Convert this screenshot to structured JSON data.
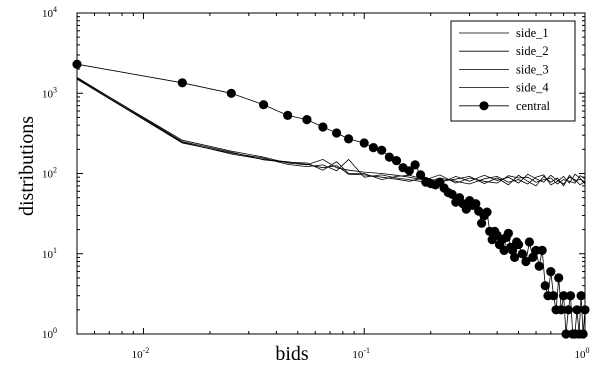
{
  "chart_data": {
    "type": "line",
    "title": "",
    "xlabel": "bids",
    "ylabel": "distributions",
    "xscale": "log",
    "yscale": "log",
    "xlim": [
      0.005,
      1
    ],
    "ylim": [
      1,
      10000
    ],
    "x_ticks": [
      {
        "value": 0.01,
        "base": "10",
        "exp": "-2"
      },
      {
        "value": 0.1,
        "base": "10",
        "exp": "-1"
      },
      {
        "value": 1,
        "base": "10",
        "exp": "0"
      }
    ],
    "y_ticks": [
      {
        "value": 1,
        "base": "10",
        "exp": "0"
      },
      {
        "value": 10,
        "base": "10",
        "exp": "1"
      },
      {
        "value": 100,
        "base": "10",
        "exp": "2"
      },
      {
        "value": 1000,
        "base": "10",
        "exp": "3"
      },
      {
        "value": 10000,
        "base": "10",
        "exp": "4"
      }
    ],
    "grid": false,
    "legend_position": "top-right",
    "series": [
      {
        "name": "side_1",
        "marker": "none",
        "x": [
          0.005,
          0.015,
          0.025,
          0.035,
          0.045,
          0.055,
          0.065,
          0.075,
          0.085,
          0.1,
          0.12,
          0.14,
          0.16,
          0.19,
          0.22,
          0.26,
          0.3,
          0.35,
          0.4,
          0.45,
          0.5,
          0.55,
          0.6,
          0.65,
          0.7,
          0.75,
          0.8,
          0.85,
          0.9,
          0.95,
          1.0
        ],
        "y": [
          1550,
          260,
          190,
          160,
          135,
          128,
          150,
          118,
          110,
          104,
          100,
          95,
          90,
          82,
          80,
          85,
          92,
          75,
          88,
          72,
          95,
          80,
          70,
          92,
          78,
          88,
          70,
          95,
          80,
          85,
          78
        ]
      },
      {
        "name": "side_2",
        "marker": "none",
        "x": [
          0.005,
          0.015,
          0.025,
          0.035,
          0.045,
          0.055,
          0.065,
          0.075,
          0.085,
          0.1,
          0.12,
          0.14,
          0.16,
          0.19,
          0.22,
          0.26,
          0.3,
          0.35,
          0.4,
          0.45,
          0.5,
          0.55,
          0.6,
          0.65,
          0.7,
          0.75,
          0.8,
          0.85,
          0.9,
          0.95,
          1.0
        ],
        "y": [
          1520,
          245,
          175,
          150,
          140,
          130,
          118,
          125,
          98,
          96,
          90,
          85,
          80,
          90,
          76,
          92,
          80,
          95,
          82,
          90,
          76,
          98,
          86,
          78,
          95,
          82,
          74,
          90,
          84,
          72,
          80
        ]
      },
      {
        "name": "side_3",
        "marker": "none",
        "x": [
          0.005,
          0.015,
          0.025,
          0.035,
          0.045,
          0.055,
          0.065,
          0.075,
          0.085,
          0.1,
          0.12,
          0.14,
          0.16,
          0.19,
          0.22,
          0.26,
          0.3,
          0.35,
          0.4,
          0.45,
          0.5,
          0.55,
          0.6,
          0.65,
          0.7,
          0.75,
          0.8,
          0.85,
          0.9,
          0.95,
          1.0
        ],
        "y": [
          1500,
          240,
          180,
          155,
          130,
          122,
          128,
          108,
          150,
          90,
          96,
          88,
          84,
          78,
          88,
          80,
          74,
          86,
          92,
          78,
          84,
          74,
          90,
          96,
          72,
          80,
          92,
          76,
          98,
          88,
          74
        ]
      },
      {
        "name": "side_4",
        "marker": "none",
        "x": [
          0.005,
          0.015,
          0.025,
          0.035,
          0.045,
          0.055,
          0.065,
          0.075,
          0.085,
          0.1,
          0.12,
          0.14,
          0.16,
          0.19,
          0.22,
          0.26,
          0.3,
          0.35,
          0.4,
          0.45,
          0.5,
          0.55,
          0.6,
          0.65,
          0.7,
          0.75,
          0.8,
          0.85,
          0.9,
          0.95,
          1.0
        ],
        "y": [
          1580,
          250,
          185,
          148,
          138,
          135,
          110,
          140,
          100,
          100,
          84,
          92,
          95,
          84,
          96,
          76,
          88,
          80,
          76,
          94,
          88,
          90,
          78,
          84,
          88,
          74,
          84,
          80,
          76,
          94,
          86
        ]
      },
      {
        "name": "central",
        "marker": "circle",
        "x": [
          0.005,
          0.015,
          0.025,
          0.035,
          0.045,
          0.055,
          0.065,
          0.075,
          0.085,
          0.1,
          0.11,
          0.12,
          0.13,
          0.14,
          0.15,
          0.16,
          0.17,
          0.18,
          0.19,
          0.2,
          0.21,
          0.22,
          0.23,
          0.24,
          0.25,
          0.26,
          0.27,
          0.28,
          0.29,
          0.3,
          0.31,
          0.32,
          0.33,
          0.34,
          0.35,
          0.36,
          0.37,
          0.38,
          0.39,
          0.4,
          0.41,
          0.42,
          0.43,
          0.44,
          0.45,
          0.46,
          0.47,
          0.48,
          0.49,
          0.5,
          0.52,
          0.54,
          0.56,
          0.58,
          0.6,
          0.62,
          0.64,
          0.66,
          0.68,
          0.7,
          0.72,
          0.74,
          0.76,
          0.78,
          0.8,
          0.82,
          0.84,
          0.86,
          0.88,
          0.9,
          0.92,
          0.94,
          0.96,
          0.98,
          1.0
        ],
        "y": [
          2300,
          1350,
          1000,
          720,
          530,
          470,
          380,
          320,
          270,
          240,
          210,
          195,
          160,
          145,
          118,
          108,
          128,
          96,
          78,
          75,
          72,
          78,
          66,
          58,
          55,
          44,
          50,
          42,
          36,
          46,
          40,
          42,
          34,
          24,
          30,
          33,
          19,
          15,
          19,
          17,
          13,
          15,
          11,
          16,
          18,
          12,
          11,
          9,
          14,
          13,
          10,
          8,
          14,
          9,
          11,
          7,
          11,
          4,
          3,
          6,
          3,
          2,
          5,
          2,
          3,
          1,
          2,
          3,
          1,
          1,
          2,
          1,
          3,
          1,
          2
        ]
      }
    ]
  }
}
